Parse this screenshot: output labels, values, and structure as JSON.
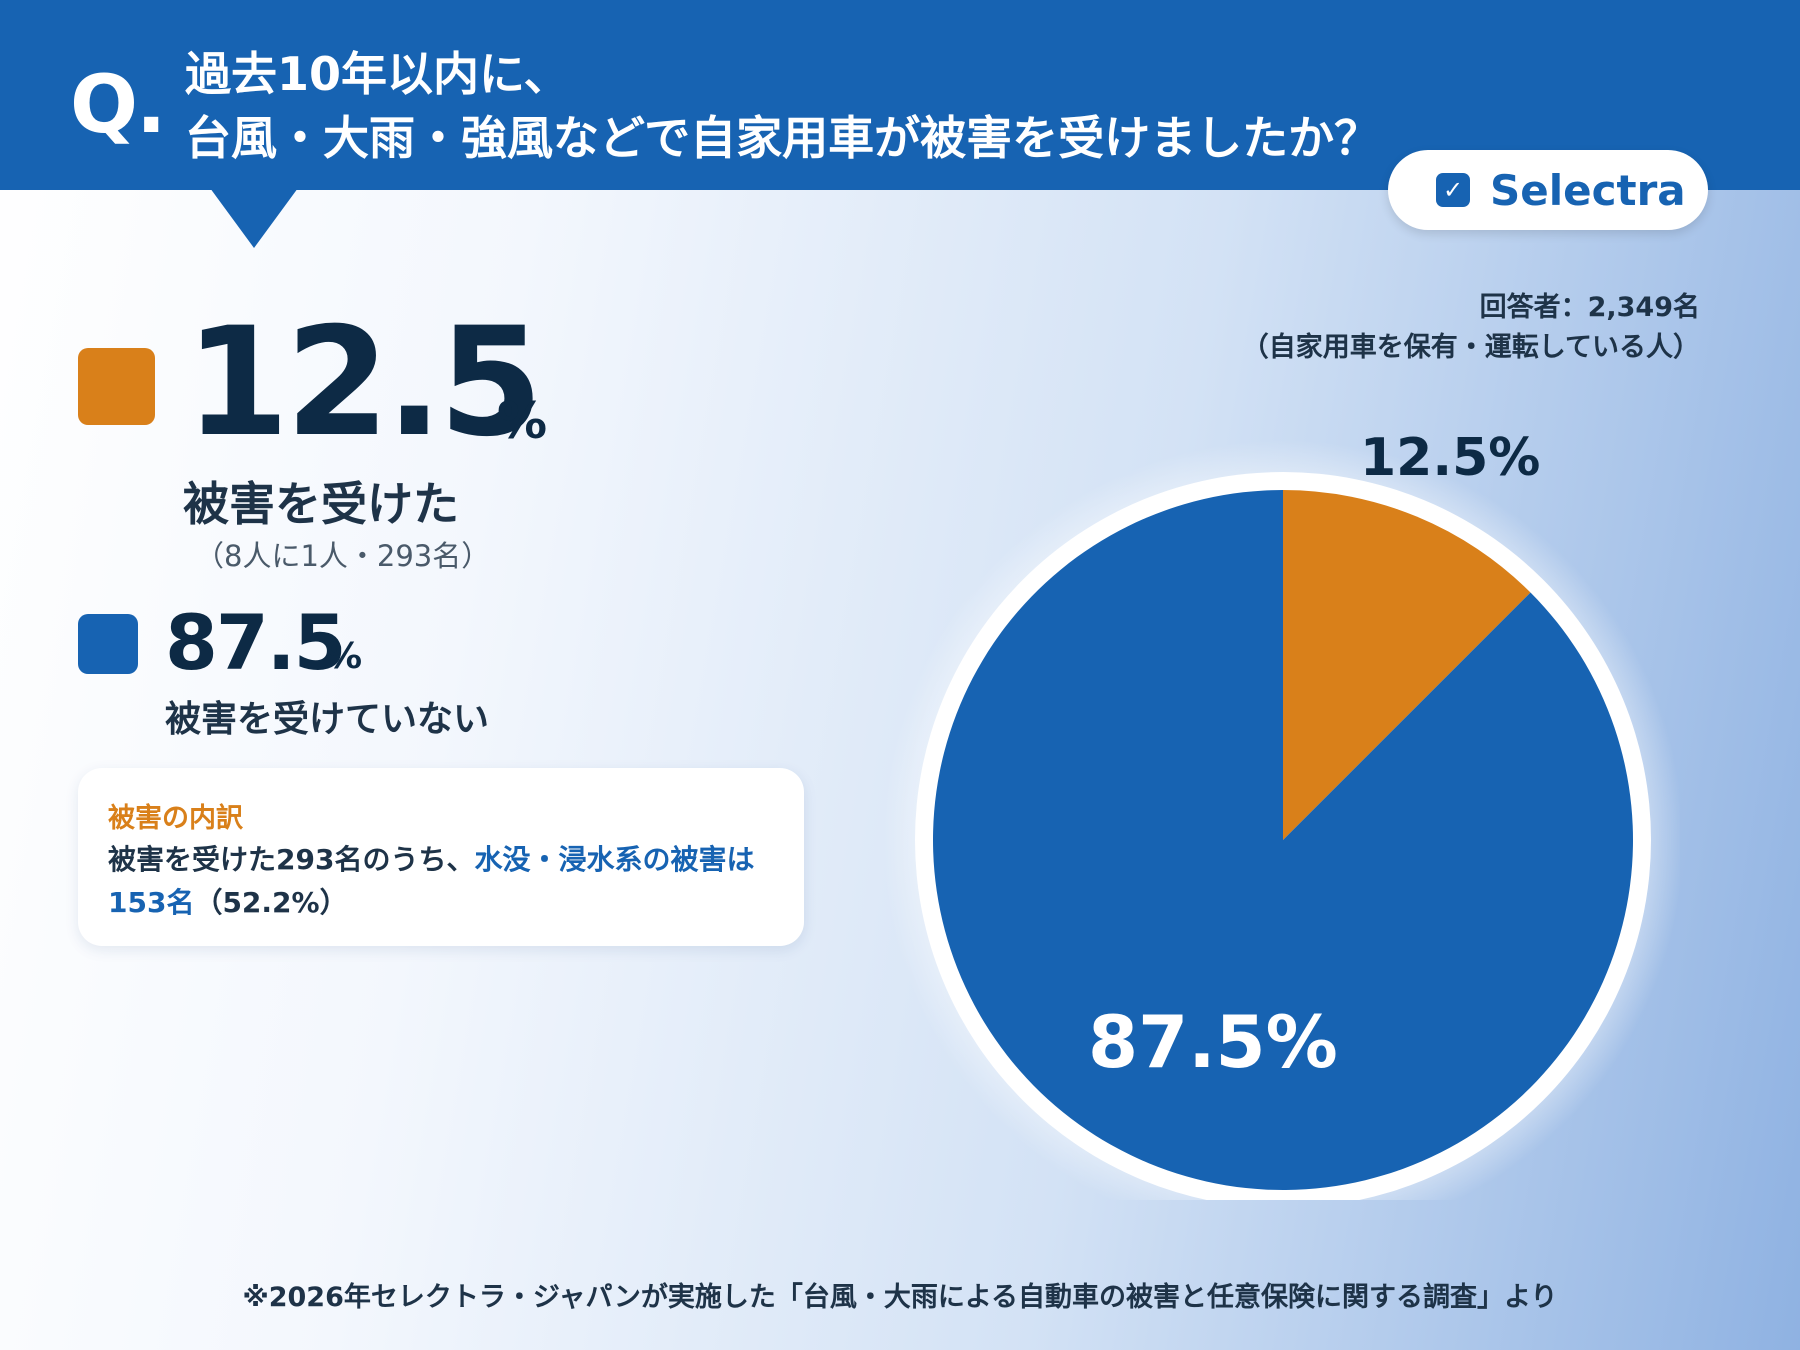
{
  "header": {
    "q_mark": "Q.",
    "question_line1": "過去10年以内に、",
    "question_line2": "台風・大雨・強風などで自家用車が被害を受けましたか？"
  },
  "logo": {
    "check": "✓",
    "text": "Selectra"
  },
  "respondents": {
    "line1": "回答者：2,349名",
    "line2": "（自家用車を保有・運転している人）"
  },
  "stats": {
    "damaged": {
      "value": "12.5",
      "unit": "%",
      "label": "被害を受けた",
      "sub": "（8人に1人・293名）",
      "color": "#d9801a"
    },
    "not_damaged": {
      "value": "87.5",
      "unit": "%",
      "label": "被害を受けていない",
      "color": "#1763b2"
    }
  },
  "card": {
    "title": "被害の内訳",
    "text_before": "被害を受けた293名のうち、",
    "text_highlight": "水没・浸水系の被害は153名",
    "text_after": "（52.2%）"
  },
  "chart_data": {
    "type": "pie",
    "categories": [
      "被害を受けた",
      "被害を受けていない"
    ],
    "values": [
      12.5,
      87.5
    ],
    "colors": [
      "#d9801a",
      "#1763b2"
    ],
    "data_labels": [
      "12.5%",
      "87.5%"
    ]
  },
  "footnote": "※2026年セレクトラ・ジャパンが実施した「台風・大雨による自動車の被害と任意保険に関する調査」より"
}
